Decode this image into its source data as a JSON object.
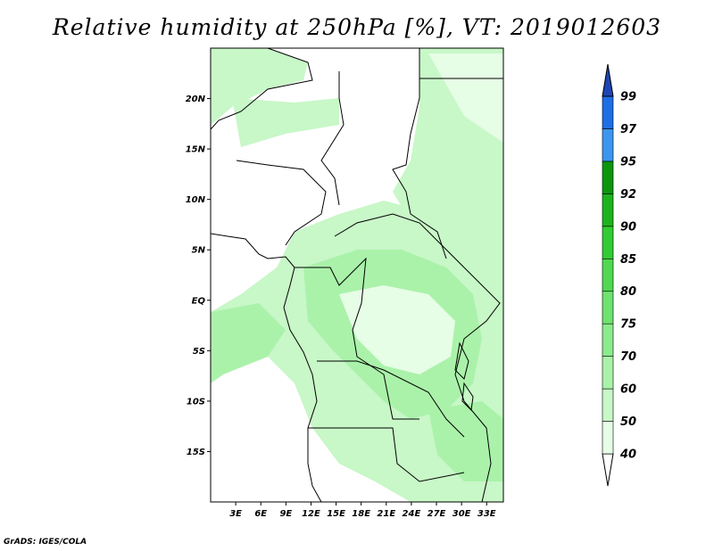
{
  "title": "Relative humidity at 250hPa [%], VT: 2019012603",
  "footer": "GrADS: IGES/COLA",
  "map": {
    "lon_range": [
      0,
      35
    ],
    "lat_range": [
      -20,
      25
    ],
    "lon_ticks": [
      {
        "value": 3,
        "label": "3E"
      },
      {
        "value": 6,
        "label": "6E"
      },
      {
        "value": 9,
        "label": "9E"
      },
      {
        "value": 12,
        "label": "12E"
      },
      {
        "value": 15,
        "label": "15E"
      },
      {
        "value": 18,
        "label": "18E"
      },
      {
        "value": 21,
        "label": "21E"
      },
      {
        "value": 24,
        "label": "24E"
      },
      {
        "value": 27,
        "label": "27E"
      },
      {
        "value": 30,
        "label": "30E"
      },
      {
        "value": 33,
        "label": "33E"
      }
    ],
    "lat_ticks": [
      {
        "value": 20,
        "label": "20N"
      },
      {
        "value": 15,
        "label": "15N"
      },
      {
        "value": 10,
        "label": "10N"
      },
      {
        "value": 5,
        "label": "5N"
      },
      {
        "value": 0,
        "label": "EQ"
      },
      {
        "value": -5,
        "label": "5S"
      },
      {
        "value": -10,
        "label": "10S"
      },
      {
        "value": -15,
        "label": "15S"
      }
    ]
  },
  "colorbar": {
    "levels": [
      "40",
      "50",
      "60",
      "70",
      "75",
      "80",
      "85",
      "90",
      "92",
      "95",
      "97",
      "99"
    ],
    "colors": [
      "#e6fde6",
      "#c8f7c8",
      "#aaf2aa",
      "#8ceb8c",
      "#6ee36e",
      "#50d950",
      "#32cc32",
      "#1cb41c",
      "#0c960c",
      "#3c96f0",
      "#1e6ee6",
      "#1450c8",
      "#1e46b4"
    ]
  }
}
